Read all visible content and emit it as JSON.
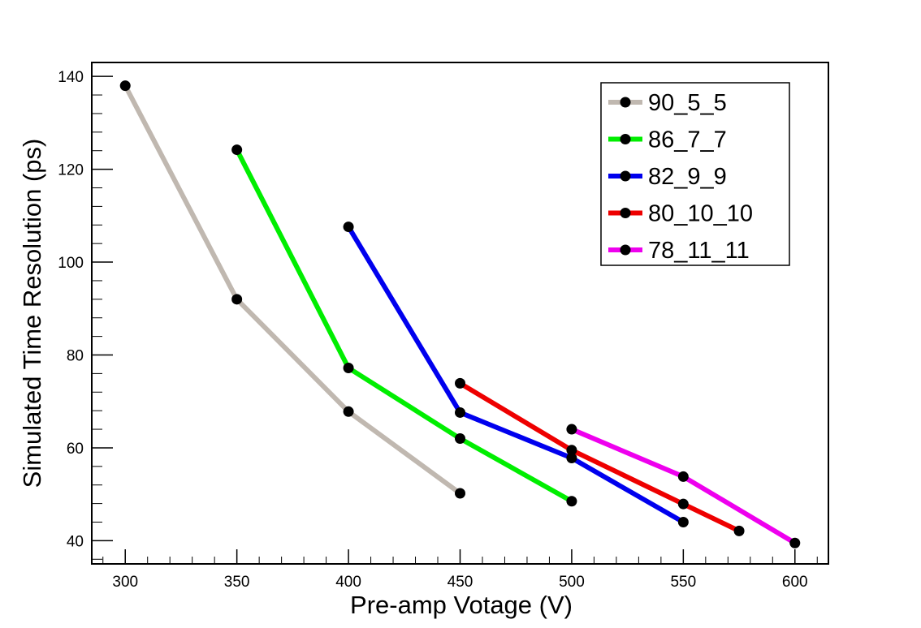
{
  "chart_data": {
    "type": "line",
    "title": "",
    "xlabel": "Pre-amp Votage (V)",
    "ylabel": "Simulated Time Resolution (ps)",
    "xlim": [
      285,
      615
    ],
    "ylim": [
      35,
      143
    ],
    "xticks": [
      300,
      350,
      400,
      450,
      500,
      550,
      600
    ],
    "yticks": [
      40,
      60,
      80,
      100,
      120,
      140
    ],
    "x_minor_step": 10,
    "y_minor_step": 4,
    "grid": false,
    "legend_position": "top-right",
    "series": [
      {
        "name": "90_5_5",
        "color": "#c0b8b0",
        "x": [
          300,
          350,
          400,
          450
        ],
        "y": [
          138,
          92,
          67.8,
          50.2
        ]
      },
      {
        "name": "86_7_7",
        "color": "#00ee00",
        "x": [
          350,
          400,
          450,
          500
        ],
        "y": [
          124.2,
          77.2,
          62,
          48.5
        ]
      },
      {
        "name": "82_9_9",
        "color": "#0000ee",
        "x": [
          400,
          450,
          500,
          550
        ],
        "y": [
          107.6,
          67.6,
          57.8,
          44
        ]
      },
      {
        "name": "80_10_10",
        "color": "#ee0000",
        "x": [
          450,
          500,
          550,
          575
        ],
        "y": [
          73.9,
          59.5,
          47.9,
          42.1
        ]
      },
      {
        "name": "78_11_11",
        "color": "#ee00ee",
        "x": [
          500,
          550,
          600
        ],
        "y": [
          64,
          53.8,
          39.5
        ]
      }
    ]
  }
}
